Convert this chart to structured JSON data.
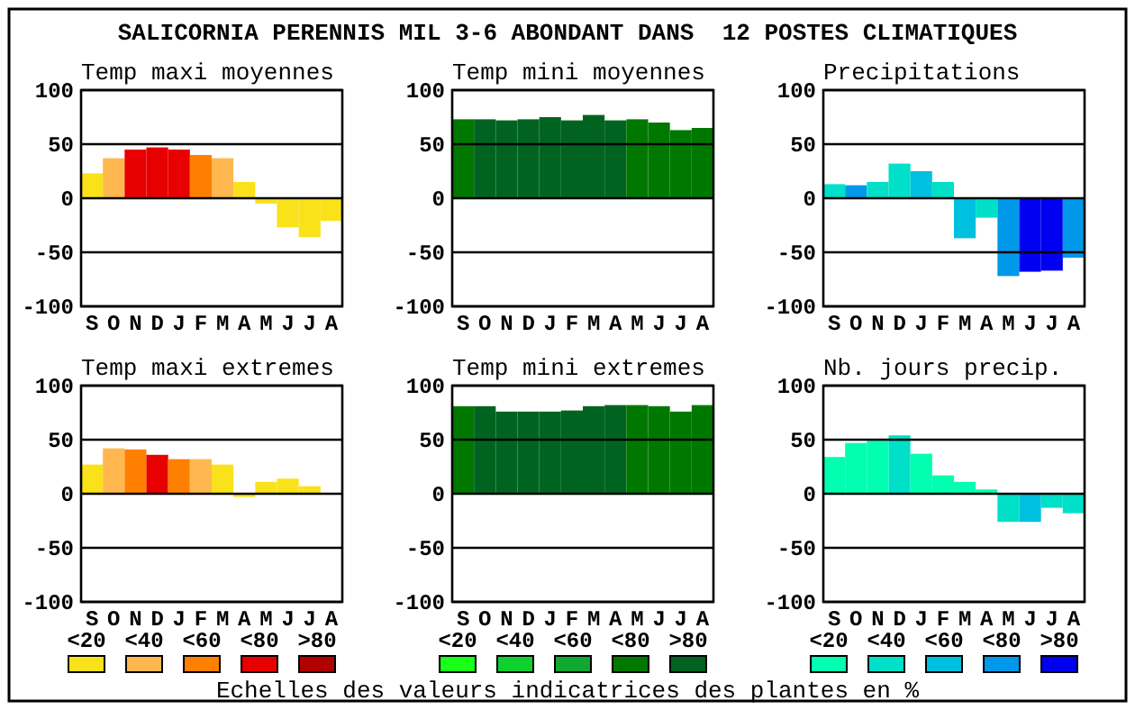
{
  "chart_data": [
    {
      "type": "other",
      "title": "SALICORNIA PERENNIS MIL 3-6 ABONDANT DANS  12 POSTES CLIMATIQUES",
      "annotations": [
        "Echelles des valeurs indicatrices des plantes en %"
      ]
    },
    {
      "type": "bar",
      "title": "Temp maxi moyennes",
      "categories": [
        "S",
        "O",
        "N",
        "D",
        "J",
        "F",
        "M",
        "A",
        "M",
        "J",
        "J",
        "A"
      ],
      "values": [
        23,
        37,
        45,
        47,
        45,
        40,
        37,
        15,
        -5,
        -27,
        -36,
        -21
      ],
      "colors": [
        "#f9e21a",
        "#ffb850",
        "#e80000",
        "#e80000",
        "#e80000",
        "#ff8000",
        "#ffb850",
        "#f9e21a",
        "#f9e21a",
        "#f9e21a",
        "#f9e21a",
        "#f9e21a"
      ],
      "ylim": [
        -100,
        100
      ],
      "yticks": [
        -100,
        -50,
        0,
        50,
        100
      ],
      "grid": "y"
    },
    {
      "type": "bar",
      "title": "Temp mini moyennes",
      "categories": [
        "S",
        "O",
        "N",
        "D",
        "J",
        "F",
        "M",
        "A",
        "M",
        "J",
        "J",
        "A"
      ],
      "values": [
        73,
        73,
        72,
        73,
        75,
        72,
        77,
        72,
        73,
        70,
        63,
        65
      ],
      "colors": [
        "#007800",
        "#006420",
        "#006420",
        "#006420",
        "#006420",
        "#006420",
        "#006420",
        "#006420",
        "#007800",
        "#007800",
        "#007800",
        "#007800"
      ],
      "ylim": [
        -100,
        100
      ],
      "yticks": [
        -100,
        -50,
        0,
        50,
        100
      ],
      "grid": "y"
    },
    {
      "type": "bar",
      "title": "Precipitations",
      "categories": [
        "S",
        "O",
        "N",
        "D",
        "J",
        "F",
        "M",
        "A",
        "M",
        "J",
        "J",
        "A"
      ],
      "values": [
        13,
        12,
        15,
        32,
        25,
        15,
        -37,
        -18,
        -72,
        -68,
        -67,
        -55
      ],
      "colors": [
        "#00e0c8",
        "#0098e8",
        "#00e0c8",
        "#00e0c8",
        "#00c0e0",
        "#00e0c8",
        "#00c0e0",
        "#00e0c8",
        "#0098e8",
        "#0000f0",
        "#0000f0",
        "#0098e8"
      ],
      "ylim": [
        -100,
        100
      ],
      "yticks": [
        -100,
        -50,
        0,
        50,
        100
      ],
      "grid": "y"
    },
    {
      "type": "bar",
      "title": "Temp maxi extremes",
      "categories": [
        "S",
        "O",
        "N",
        "D",
        "J",
        "F",
        "M",
        "A",
        "M",
        "J",
        "J",
        "A"
      ],
      "values": [
        27,
        42,
        41,
        36,
        32,
        32,
        27,
        -3,
        11,
        14,
        7,
        null
      ],
      "colors": [
        "#f9e21a",
        "#ffb850",
        "#ff8000",
        "#e80000",
        "#ff8000",
        "#ffb850",
        "#f9e21a",
        "#f9e21a",
        "#f9e21a",
        "#f9e21a",
        "#f9e21a",
        null
      ],
      "ylim": [
        -100,
        100
      ],
      "yticks": [
        -100,
        -50,
        0,
        50,
        100
      ],
      "grid": "y"
    },
    {
      "type": "bar",
      "title": "Temp mini extremes",
      "categories": [
        "S",
        "O",
        "N",
        "D",
        "J",
        "F",
        "M",
        "A",
        "M",
        "J",
        "J",
        "A"
      ],
      "values": [
        81,
        81,
        76,
        76,
        76,
        77,
        81,
        82,
        82,
        81,
        76,
        82
      ],
      "colors": [
        "#007800",
        "#006420",
        "#006420",
        "#006420",
        "#006420",
        "#006420",
        "#006420",
        "#006420",
        "#007800",
        "#007800",
        "#007800",
        "#007800"
      ],
      "ylim": [
        -100,
        100
      ],
      "yticks": [
        -100,
        -50,
        0,
        50,
        100
      ],
      "grid": "y"
    },
    {
      "type": "bar",
      "title": "Nb. jours precip.",
      "categories": [
        "S",
        "O",
        "N",
        "D",
        "J",
        "F",
        "M",
        "A",
        "M",
        "J",
        "J",
        "A"
      ],
      "values": [
        34,
        47,
        49,
        54,
        37,
        17,
        11,
        4,
        -26,
        -26,
        -13,
        -18
      ],
      "colors": [
        "#00ffb0",
        "#00ffb0",
        "#00ffb0",
        "#00e0c8",
        "#00ffb0",
        "#00ffb0",
        "#00ffb0",
        "#00ffb0",
        "#00e0c8",
        "#00c0e0",
        "#00e0c8",
        "#00e0c8"
      ],
      "ylim": [
        -100,
        100
      ],
      "yticks": [
        -100,
        -50,
        0,
        50,
        100
      ],
      "grid": "y"
    },
    {
      "type": "other",
      "categories": [
        "<20",
        "<40",
        "<60",
        "<80",
        ">80"
      ],
      "colors": [
        "#f9e21a",
        "#ffb850",
        "#ff8000",
        "#e80000",
        "#b00000"
      ]
    },
    {
      "type": "other",
      "categories": [
        "<20",
        "<40",
        "<60",
        "<80",
        ">80"
      ],
      "colors": [
        "#18ff18",
        "#10d030",
        "#10a830",
        "#007800",
        "#006420"
      ]
    },
    {
      "type": "other",
      "categories": [
        "<20",
        "<40",
        "<60",
        "<80",
        ">80"
      ],
      "colors": [
        "#00ffb0",
        "#00e0c8",
        "#00c0e0",
        "#0098e8",
        "#0000f0"
      ]
    }
  ]
}
